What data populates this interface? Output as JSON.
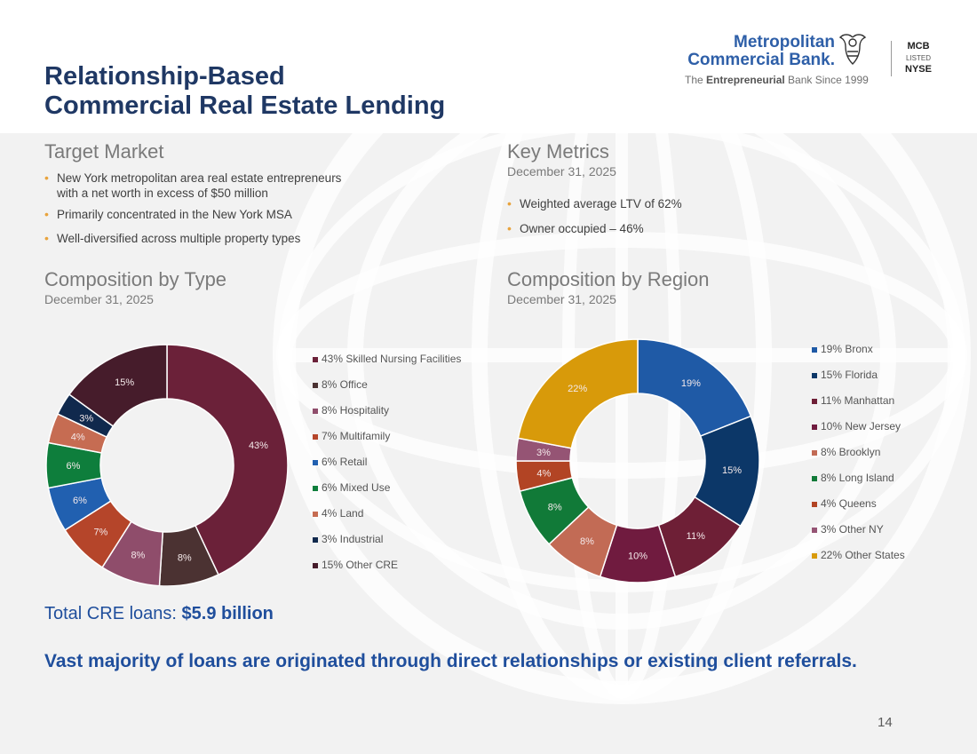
{
  "slide": {
    "title_line1": "Relationship-Based",
    "title_line2": "Commercial Real Estate Lending",
    "page_number": "14"
  },
  "logo": {
    "name_line1": "Metropolitan",
    "name_line2": "Commercial Bank",
    "name_suffix": ".",
    "tagline_prefix": "The ",
    "tagline_bold": "Entrepreneurial",
    "tagline_suffix": " Bank Since 1999",
    "ticker": "MCB",
    "listed": "LISTED",
    "exchange": "NYSE",
    "icon": "eagle-icon"
  },
  "target_market": {
    "heading": "Target Market",
    "bullets": [
      "New York metropolitan area real estate entrepreneurs with a net worth in excess of $50 million",
      "Primarily concentrated in the New York MSA",
      "Well-diversified across multiple property types"
    ]
  },
  "key_metrics": {
    "heading": "Key Metrics",
    "date": "December 31, 2025",
    "bullets": [
      "Weighted average LTV of 62%",
      "Owner occupied – 46%"
    ]
  },
  "total": {
    "label": "Total CRE loans: ",
    "value": "$5.9 billion"
  },
  "footer_note": "Vast majority of loans are originated through direct relationships or existing client referrals.",
  "colors": {
    "title": "#1f3864",
    "accent_blue": "#1f4e9c",
    "bullet": "#e8a33d"
  },
  "chart_data": [
    {
      "type": "pie",
      "title": "Composition by Type",
      "subtitle": "December 31, 2025",
      "donut": true,
      "legend_position": "right",
      "slices": [
        {
          "label": "Skilled Nursing Facilities",
          "value": 43,
          "display": "43%",
          "legend": "43% Skilled Nursing Facilities",
          "color": "#6b2139"
        },
        {
          "label": "Office",
          "value": 8,
          "display": "8%",
          "legend": "8% Office",
          "color": "#4b3232"
        },
        {
          "label": "Hospitality",
          "value": 8,
          "display": "8%",
          "legend": "8% Hospitality",
          "color": "#8f4d6b"
        },
        {
          "label": "Multifamily",
          "value": 7,
          "display": "7%",
          "legend": "7% Multifamily",
          "color": "#b5452a"
        },
        {
          "label": "Retail",
          "value": 6,
          "display": "6%",
          "legend": "6% Retail",
          "color": "#2160b0"
        },
        {
          "label": "Mixed Use",
          "value": 6,
          "display": "6%",
          "legend": "6% Mixed Use",
          "color": "#0e7e3c"
        },
        {
          "label": "Land",
          "value": 4,
          "display": "4%",
          "legend": "4% Land",
          "color": "#c66c52"
        },
        {
          "label": "Industrial",
          "value": 3,
          "display": "3%",
          "legend": "3% Industrial",
          "color": "#10294d"
        },
        {
          "label": "Other CRE",
          "value": 15,
          "display": "15%",
          "legend": "15% Other CRE",
          "color": "#461c2b"
        }
      ]
    },
    {
      "type": "pie",
      "title": "Composition by Region",
      "subtitle": "December 31, 2025",
      "donut": true,
      "legend_position": "right",
      "slices": [
        {
          "label": "Bronx",
          "value": 19,
          "display": "19%",
          "legend": "19% Bronx",
          "color": "#1f5aa6"
        },
        {
          "label": "Florida",
          "value": 15,
          "display": "15%",
          "legend": "15% Florida",
          "color": "#0c3768"
        },
        {
          "label": "Manhattan",
          "value": 11,
          "display": "11%",
          "legend": "11% Manhattan",
          "color": "#6e1f36"
        },
        {
          "label": "New Jersey",
          "value": 10,
          "display": "10%",
          "legend": "10% New Jersey",
          "color": "#701b3f"
        },
        {
          "label": "Brooklyn",
          "value": 8,
          "display": "8%",
          "legend": "8% Brooklyn",
          "color": "#c26b55"
        },
        {
          "label": "Long Island",
          "value": 8,
          "display": "8%",
          "legend": "8% Long Island",
          "color": "#117a38"
        },
        {
          "label": "Queens",
          "value": 4,
          "display": "4%",
          "legend": "4% Queens",
          "color": "#b24424"
        },
        {
          "label": "Other NY",
          "value": 3,
          "display": "3%",
          "legend": "3% Other NY",
          "color": "#955474"
        },
        {
          "label": "Other States",
          "value": 22,
          "display": "22%",
          "legend": "22% Other States",
          "color": "#d89a0a"
        }
      ]
    }
  ]
}
